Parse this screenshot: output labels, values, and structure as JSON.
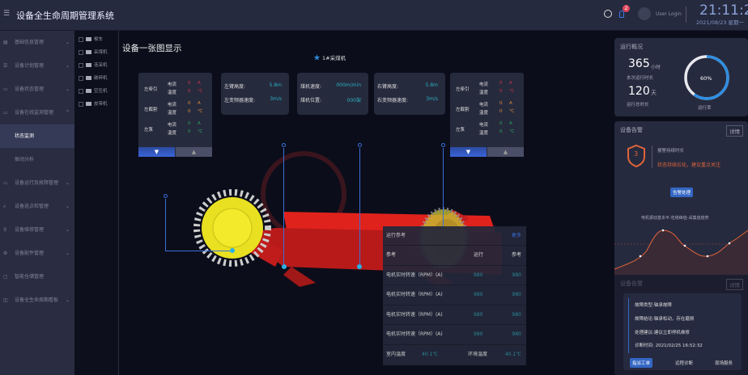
{
  "header": {
    "title": "设备全生命周期管理系统",
    "notification_count": "2",
    "user": "User Login",
    "time": "21:11:26",
    "date": "2021/08/23 星期一"
  },
  "sidebar": {
    "items": [
      {
        "label": "基础信息管理",
        "icon": "list-icon",
        "chevron": "⌄"
      },
      {
        "label": "设备计划管理",
        "icon": "plan-icon",
        "chevron": "⌄"
      },
      {
        "label": "设备状态管理",
        "icon": "monitor-icon",
        "chevron": "⌄"
      },
      {
        "label": "设备在线监测管理",
        "icon": "monitor-icon",
        "chevron": "^"
      },
      {
        "label": "状态监测",
        "active": true
      },
      {
        "label": "振动分析"
      },
      {
        "label": "设备运行及故障管理",
        "icon": "monitor-icon",
        "chevron": "⌄"
      },
      {
        "label": "设备巡点检管理",
        "icon": "search-icon",
        "chevron": "⌄"
      },
      {
        "label": "设备维修管理",
        "icon": "wrench-icon",
        "chevron": "⌄"
      },
      {
        "label": "设备配件管理",
        "icon": "gear-icon",
        "chevron": "⌄"
      },
      {
        "label": "智能仓储管理",
        "icon": "box-icon",
        "chevron": ""
      },
      {
        "label": "设备全生命周期看板",
        "icon": "board-icon",
        "chevron": "⌄"
      }
    ]
  },
  "tree": [
    "梭车",
    "采煤机",
    "连采机",
    "破碎机",
    "空压机",
    "皮带机"
  ],
  "main": {
    "title": "设备一张图显示",
    "machine": "1#采煤机",
    "motor_panels": [
      {
        "rows": [
          {
            "name": "左牵引",
            "color": "#d2334a"
          },
          {
            "name": "左截割",
            "color": "#e08a3a"
          },
          {
            "name": "左泵",
            "color": "#2aa860"
          }
        ]
      },
      {
        "rows": [
          {
            "name": "左牵引",
            "color": "#d2334a"
          },
          {
            "name": "左截割",
            "color": "#e08a3a"
          },
          {
            "name": "左泵",
            "color": "#2aa860"
          }
        ]
      }
    ],
    "motor_labels": {
      "current": "电流",
      "temp": "温度",
      "value": "0",
      "unit_a": "A",
      "unit_c": "℃",
      "down": "▼",
      "up": "▲"
    },
    "info_cards": [
      [
        {
          "k": "左臂高度:",
          "v": "5.8m"
        },
        {
          "k": "左变频器速度:",
          "v": "3m/s"
        }
      ],
      [
        {
          "k": "煤机速度:",
          "v": "000m/min"
        },
        {
          "k": "煤机位置:",
          "v": "000架"
        }
      ],
      [
        {
          "k": "右臂高度:",
          "v": "5.8m"
        },
        {
          "k": "右变频器速度:",
          "v": "3m/s"
        }
      ]
    ],
    "marker": "0",
    "reference": {
      "title": "运行参考",
      "more": "更多",
      "headers": [
        "参考",
        "运行",
        "参考"
      ],
      "rows": [
        [
          "电机实时转速（RPM）(A)",
          "980",
          "980"
        ],
        [
          "电机实时转速（RPM）(A)",
          "980",
          "980"
        ],
        [
          "电机实时转速（RPM）(A)",
          "980",
          "980"
        ],
        [
          "电机实时转速（RPM）(A)",
          "980",
          "980"
        ]
      ],
      "footer": {
        "indoor_label": "室内温度",
        "indoor": "40.1℃",
        "env_label": "环境温度",
        "env": "40.1℃"
      }
    }
  },
  "overview": {
    "title": "运行概况",
    "hours": "365",
    "hours_unit": "小时",
    "hours_label": "本次运行时长",
    "days": "120",
    "days_unit": "天",
    "days_label": "运行总时长",
    "rate": 60,
    "rate_text": "60%",
    "rate_label": "运行率",
    "accent": "#2f8ee0"
  },
  "alarm": {
    "title": "设备告警",
    "detail": "详情",
    "level": "3",
    "line1": "报警持续时长",
    "line2": "状态持续劣化，建议重点关注",
    "button": "告警处理",
    "chart_title": "电机振动基本平-包络峰值-采集值趋势",
    "color": "#e0643a"
  },
  "alarm2": {
    "title": "设备告警",
    "detail": "详情",
    "steps": [
      "故障类型:轴承故障",
      "故障结论:轴承松动，存在磨损",
      "处理建议:建议立即停机维修"
    ],
    "time": "诊断时间: 2021/02/25 16:52:32",
    "buttons": [
      "指派工单",
      "远程诊断",
      "现场服务"
    ]
  }
}
